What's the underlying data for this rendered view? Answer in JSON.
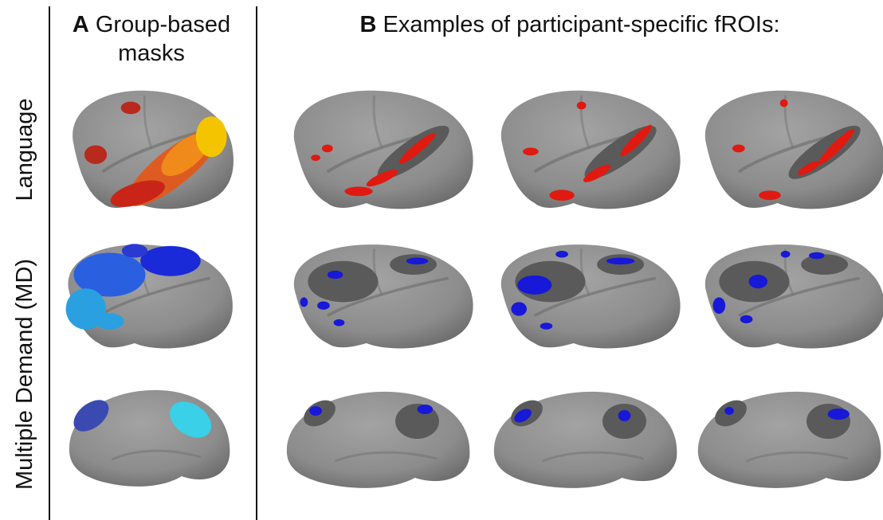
{
  "panel_a": {
    "label": "A",
    "title_lines": [
      "Group-based",
      "masks"
    ]
  },
  "panel_b": {
    "label": "B",
    "title": "Examples of participant-specific fROIs:"
  },
  "rows": [
    "Language",
    "Multiple Demand (MD)"
  ]
}
